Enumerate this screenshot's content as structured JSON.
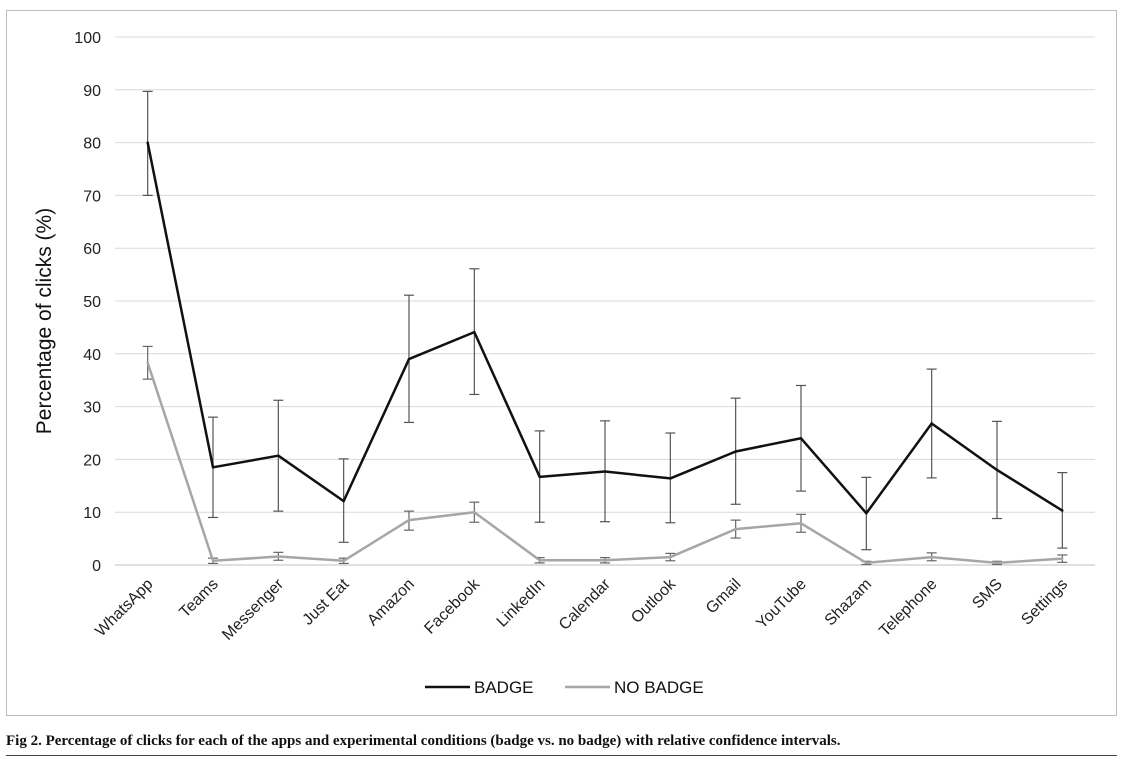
{
  "chart_data": {
    "type": "line",
    "ylabel": "Percentage of clicks (%)",
    "xlabel": "",
    "ylim": [
      0,
      100
    ],
    "yticks": [
      0,
      10,
      20,
      30,
      40,
      50,
      60,
      70,
      80,
      90,
      100
    ],
    "grid": true,
    "legend_position": "bottom-center",
    "categories": [
      "WhatsApp",
      "Teams",
      "Messenger",
      "Just Eat",
      "Amazon",
      "Facebook",
      "LinkedIn",
      "Calendar",
      "Outlook",
      "Gmail",
      "YouTube",
      "Shazam",
      "Telephone",
      "SMS",
      "Settings"
    ],
    "series": [
      {
        "name": "BADGE",
        "color": "#111111",
        "values": [
          80,
          18.5,
          20.7,
          12.1,
          39,
          44.1,
          16.7,
          17.7,
          16.4,
          21.5,
          24,
          9.8,
          26.8,
          18,
          10.3
        ],
        "ci_low": [
          70,
          9,
          10.2,
          4.3,
          27,
          32.3,
          8.1,
          8.2,
          8,
          11.5,
          14,
          2.9,
          16.5,
          8.8,
          3.2
        ],
        "ci_high": [
          89.7,
          28,
          31.2,
          20.1,
          51.1,
          56.1,
          25.4,
          27.3,
          25,
          31.6,
          34,
          16.6,
          37.1,
          27.2,
          17.5
        ]
      },
      {
        "name": "NO BADGE",
        "color": "#a6a6a6",
        "values": [
          38.3,
          0.8,
          1.6,
          0.8,
          8.5,
          10,
          0.9,
          0.9,
          1.5,
          6.8,
          7.9,
          0.4,
          1.5,
          0.4,
          1.2
        ],
        "ci_low": [
          35.2,
          0.3,
          0.9,
          0.3,
          6.6,
          8.1,
          0.4,
          0.4,
          0.8,
          5.1,
          6.2,
          0.1,
          0.8,
          0.1,
          0.5
        ],
        "ci_high": [
          41.4,
          1.3,
          2.4,
          1.3,
          10.2,
          11.9,
          1.4,
          1.4,
          2.2,
          8.5,
          9.6,
          0.7,
          2.3,
          0.7,
          1.9
        ]
      }
    ]
  },
  "caption": {
    "text": "Fig 2.  Percentage of clicks for each of the apps and experimental conditions (badge vs. no badge) with relative confidence intervals."
  }
}
